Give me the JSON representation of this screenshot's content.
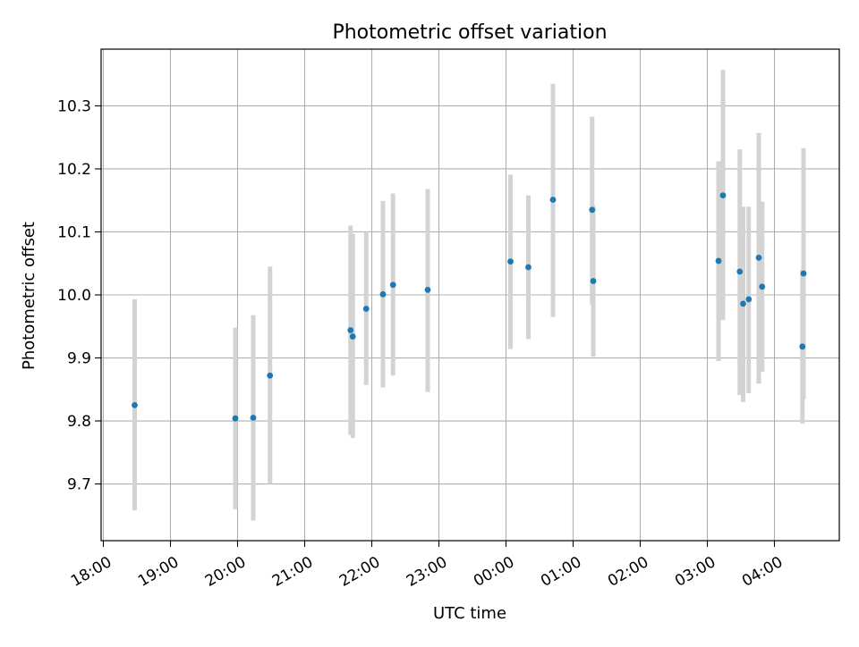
{
  "chart_data": {
    "type": "scatter",
    "title": "Photometric offset variation",
    "xlabel": "UTC time",
    "ylabel": "Photometric offset",
    "x_ticks": [
      "18:00",
      "19:00",
      "20:00",
      "21:00",
      "22:00",
      "23:00",
      "00:00",
      "01:00",
      "02:00",
      "03:00",
      "04:00"
    ],
    "y_ticks": [
      "9.7",
      "9.8",
      "9.9",
      "10.0",
      "10.1",
      "10.2",
      "10.3"
    ],
    "xlim": [
      "17:58",
      "04:58"
    ],
    "ylim": [
      9.61,
      10.39
    ],
    "grid": true,
    "colors": {
      "point": "#1f77b4",
      "errorbar": "#d3d3d3",
      "grid": "#b0b0b0"
    },
    "points": [
      {
        "t": "18:28",
        "y": 9.825,
        "lo": 9.658,
        "hi": 9.993
      },
      {
        "t": "19:58",
        "y": 9.804,
        "lo": 9.66,
        "hi": 9.948
      },
      {
        "t": "20:14",
        "y": 9.805,
        "lo": 9.642,
        "hi": 9.968
      },
      {
        "t": "20:29",
        "y": 9.872,
        "lo": 9.7,
        "hi": 10.045
      },
      {
        "t": "21:41",
        "y": 9.944,
        "lo": 9.778,
        "hi": 10.11
      },
      {
        "t": "21:43",
        "y": 9.934,
        "lo": 9.773,
        "hi": 10.097
      },
      {
        "t": "21:55",
        "y": 9.978,
        "lo": 9.857,
        "hi": 10.1
      },
      {
        "t": "22:10",
        "y": 10.001,
        "lo": 9.853,
        "hi": 10.149
      },
      {
        "t": "22:19",
        "y": 10.016,
        "lo": 9.872,
        "hi": 10.161
      },
      {
        "t": "22:50",
        "y": 10.008,
        "lo": 9.846,
        "hi": 10.168
      },
      {
        "t": "00:04",
        "y": 10.053,
        "lo": 9.914,
        "hi": 10.191
      },
      {
        "t": "00:20",
        "y": 10.044,
        "lo": 9.93,
        "hi": 10.158
      },
      {
        "t": "00:42",
        "y": 10.151,
        "lo": 9.965,
        "hi": 10.335
      },
      {
        "t": "01:17",
        "y": 10.135,
        "lo": 9.985,
        "hi": 10.283
      },
      {
        "t": "01:18",
        "y": 10.022,
        "lo": 9.902,
        "hi": 10.142
      },
      {
        "t": "03:10",
        "y": 10.054,
        "lo": 9.895,
        "hi": 10.212
      },
      {
        "t": "03:14",
        "y": 10.158,
        "lo": 9.96,
        "hi": 10.357
      },
      {
        "t": "03:29",
        "y": 10.037,
        "lo": 9.841,
        "hi": 10.231
      },
      {
        "t": "03:32",
        "y": 9.986,
        "lo": 9.83,
        "hi": 10.14
      },
      {
        "t": "03:37",
        "y": 9.993,
        "lo": 9.844,
        "hi": 10.14
      },
      {
        "t": "03:46",
        "y": 10.059,
        "lo": 9.859,
        "hi": 10.257
      },
      {
        "t": "03:49",
        "y": 10.013,
        "lo": 9.878,
        "hi": 10.148
      },
      {
        "t": "04:25",
        "y": 9.918,
        "lo": 9.796,
        "hi": 10.04
      },
      {
        "t": "04:26",
        "y": 10.034,
        "lo": 9.835,
        "hi": 10.233
      }
    ]
  }
}
